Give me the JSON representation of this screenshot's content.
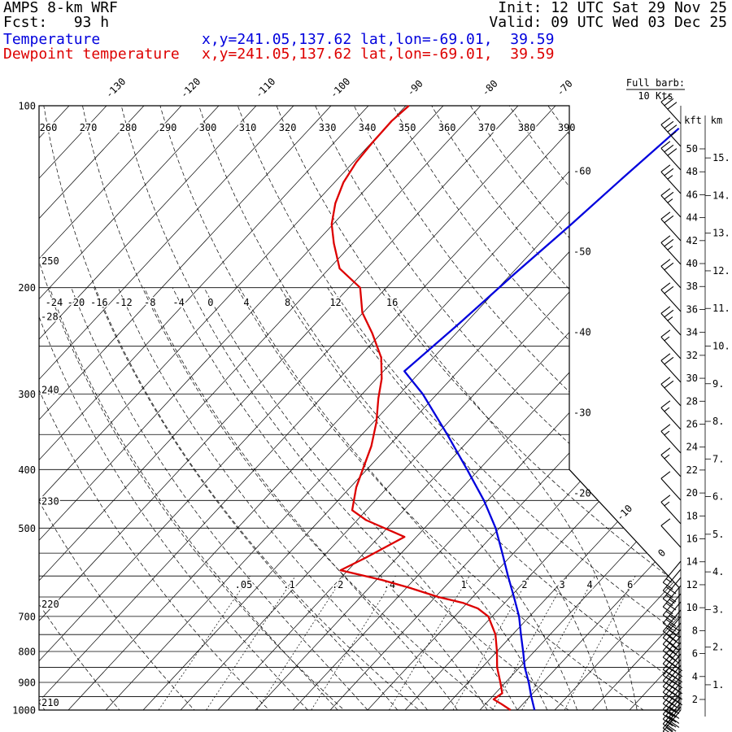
{
  "header": {
    "model": "AMPS 8-km WRF",
    "fcst": "Fcst:   93 h",
    "init": "Init: 12 UTC Sat 29 Nov 25",
    "valid": "Valid: 09 UTC Wed 03 Dec 25",
    "temp_row": {
      "label": "Temperature",
      "xy": "x,y=241.05,137.62",
      "latlon": "lat,lon=-69.01,  39.59"
    },
    "dewp_row": {
      "label": "Dewpoint temperature",
      "xy": "x,y=241.05,137.62",
      "latlon": "lat,lon=-69.01,  39.59"
    }
  },
  "legend": {
    "full_barb_label": "Full barb:",
    "full_barb_value": "10 Kts"
  },
  "height_axis": {
    "kft_header": "kft",
    "km_header": "km",
    "kft_ticks": [
      2,
      4,
      6,
      8,
      10,
      12,
      14,
      16,
      18,
      20,
      22,
      24,
      26,
      28,
      30,
      32,
      34,
      36,
      38,
      40,
      42,
      44,
      46,
      48,
      50
    ],
    "km_ticks": [
      1,
      2,
      3,
      4,
      5,
      6,
      7,
      8,
      9,
      10,
      11,
      12,
      13,
      14,
      15
    ]
  },
  "colors": {
    "temperature": "#0000dd",
    "dewpoint": "#dd0000",
    "grid": "#000000"
  },
  "chart_data": {
    "type": "skewt-log-p",
    "title": "AMPS 8-km WRF 93 h forecast sounding",
    "pressure_hpa_gridlines": [
      100,
      200,
      250,
      300,
      350,
      400,
      450,
      500,
      550,
      600,
      650,
      700,
      750,
      800,
      850,
      900,
      950,
      1000
    ],
    "pressure_axis_labels": [
      100,
      200,
      300,
      400,
      500,
      700,
      800,
      900,
      1000
    ],
    "isotherm_step_c": 5,
    "isotherm_labels_top_c": [
      -130,
      -120,
      -110,
      -100,
      -90,
      -80,
      -70
    ],
    "isotherm_labels_right_c": [
      -60,
      -50,
      -40,
      -30,
      -20
    ],
    "isotherm_labels_diagonal_c": [
      -10,
      0
    ],
    "dry_adiabat_labels_k": [
      210,
      220,
      230,
      240,
      250,
      260,
      270,
      280,
      290,
      300,
      310,
      320,
      330,
      340,
      350,
      360,
      370,
      380,
      390
    ],
    "moist_adiabat_labels_c": [
      -28,
      -24,
      -20,
      -16,
      -12,
      -8,
      -4,
      0,
      4,
      8,
      12,
      16
    ],
    "mixing_ratio_gkg": [
      0.05,
      0.1,
      0.2,
      0.4,
      1,
      2,
      3,
      4,
      6
    ],
    "mixing_ratio_labels": [
      ".05",
      ".1",
      ".2",
      ".4",
      "1",
      "2",
      "3",
      "4",
      "6"
    ],
    "temperature_profile_p_c": [
      [
        1000,
        2.3
      ],
      [
        950,
        0.2
      ],
      [
        900,
        -1.9
      ],
      [
        850,
        -4.3
      ],
      [
        800,
        -6.5
      ],
      [
        750,
        -8.9
      ],
      [
        700,
        -11.4
      ],
      [
        650,
        -14.5
      ],
      [
        600,
        -17.9
      ],
      [
        550,
        -21.5
      ],
      [
        500,
        -25.5
      ],
      [
        450,
        -30.5
      ],
      [
        400,
        -36.6
      ],
      [
        350,
        -43.6
      ],
      [
        300,
        -51.9
      ],
      [
        275,
        -57.2
      ],
      [
        229,
        -55.8
      ],
      [
        190,
        -54.6
      ],
      [
        158,
        -53.2
      ],
      [
        131,
        -52.0
      ],
      [
        109,
        -50.7
      ]
    ],
    "dewpoint_profile_p_c": [
      [
        1000,
        -0.9
      ],
      [
        978,
        -2.8
      ],
      [
        960,
        -4.5
      ],
      [
        938,
        -4.1
      ],
      [
        900,
        -5.7
      ],
      [
        850,
        -8.0
      ],
      [
        800,
        -10.0
      ],
      [
        750,
        -12.3
      ],
      [
        700,
        -15.5
      ],
      [
        679,
        -17.9
      ],
      [
        665,
        -20.5
      ],
      [
        650,
        -24.6
      ],
      [
        628,
        -29.5
      ],
      [
        609,
        -34.3
      ],
      [
        587,
        -41.0
      ],
      [
        560,
        -39.2
      ],
      [
        517,
        -36.6
      ],
      [
        485,
        -43.8
      ],
      [
        467,
        -46.9
      ],
      [
        428,
        -49.2
      ],
      [
        403,
        -50.4
      ],
      [
        366,
        -52.3
      ],
      [
        334,
        -54.6
      ],
      [
        305,
        -57.3
      ],
      [
        283,
        -59.3
      ],
      [
        261,
        -62.0
      ],
      [
        238,
        -66.2
      ],
      [
        220,
        -70.1
      ],
      [
        200,
        -73.5
      ],
      [
        186,
        -78.6
      ],
      [
        169,
        -82.5
      ],
      [
        157,
        -85.2
      ],
      [
        145,
        -87.3
      ],
      [
        134,
        -88.8
      ],
      [
        124,
        -89.6
      ],
      [
        115,
        -89.9
      ],
      [
        106,
        -90.0
      ],
      [
        100,
        -89.6
      ]
    ],
    "wind_barbs": {
      "full_barb_kts": 10,
      "levels": [
        [
          152,
          1,
          3,
          0
        ],
        [
          180,
          1,
          3,
          1
        ],
        [
          209,
          1,
          3,
          0
        ],
        [
          238,
          1,
          2,
          1
        ],
        [
          267,
          1,
          2,
          1
        ],
        [
          296,
          1,
          2,
          0
        ],
        [
          325,
          1,
          2,
          1
        ],
        [
          354,
          1,
          2,
          0
        ],
        [
          383,
          1,
          2,
          0
        ],
        [
          412,
          1,
          2,
          1
        ],
        [
          441,
          1,
          1,
          1
        ],
        [
          470,
          1,
          2,
          0
        ],
        [
          499,
          1,
          2,
          0
        ],
        [
          528,
          1,
          1,
          1
        ],
        [
          557,
          1,
          1,
          1
        ],
        [
          586,
          1,
          1,
          1
        ],
        [
          615,
          1,
          1,
          0
        ],
        [
          644,
          1,
          1,
          1
        ],
        [
          673,
          1,
          1,
          0
        ],
        [
          690,
          0,
          1,
          1
        ],
        [
          700,
          0,
          2,
          0
        ],
        [
          710,
          0,
          2,
          0
        ],
        [
          720,
          0,
          2,
          1
        ],
        [
          730,
          0,
          2,
          0
        ],
        [
          740,
          0,
          2,
          1
        ],
        [
          750,
          0,
          3,
          0
        ],
        [
          758,
          0,
          3,
          0
        ],
        [
          766,
          0,
          3,
          0
        ],
        [
          774,
          0,
          3,
          0
        ],
        [
          782,
          0,
          3,
          1
        ],
        [
          790,
          0,
          3,
          0
        ],
        [
          797,
          0,
          3,
          0
        ],
        [
          804,
          0,
          4,
          0
        ],
        [
          811,
          0,
          4,
          0
        ],
        [
          818,
          0,
          4,
          0
        ],
        [
          825,
          0,
          4,
          0
        ],
        [
          832,
          0,
          4,
          0
        ],
        [
          839,
          0,
          4,
          0
        ],
        [
          846,
          0,
          4,
          0
        ],
        [
          852,
          0,
          3,
          0
        ],
        [
          858,
          0,
          3,
          0
        ],
        [
          864,
          0,
          3,
          0
        ],
        [
          869,
          0,
          3,
          0
        ],
        [
          873,
          0,
          2,
          0
        ]
      ]
    }
  }
}
